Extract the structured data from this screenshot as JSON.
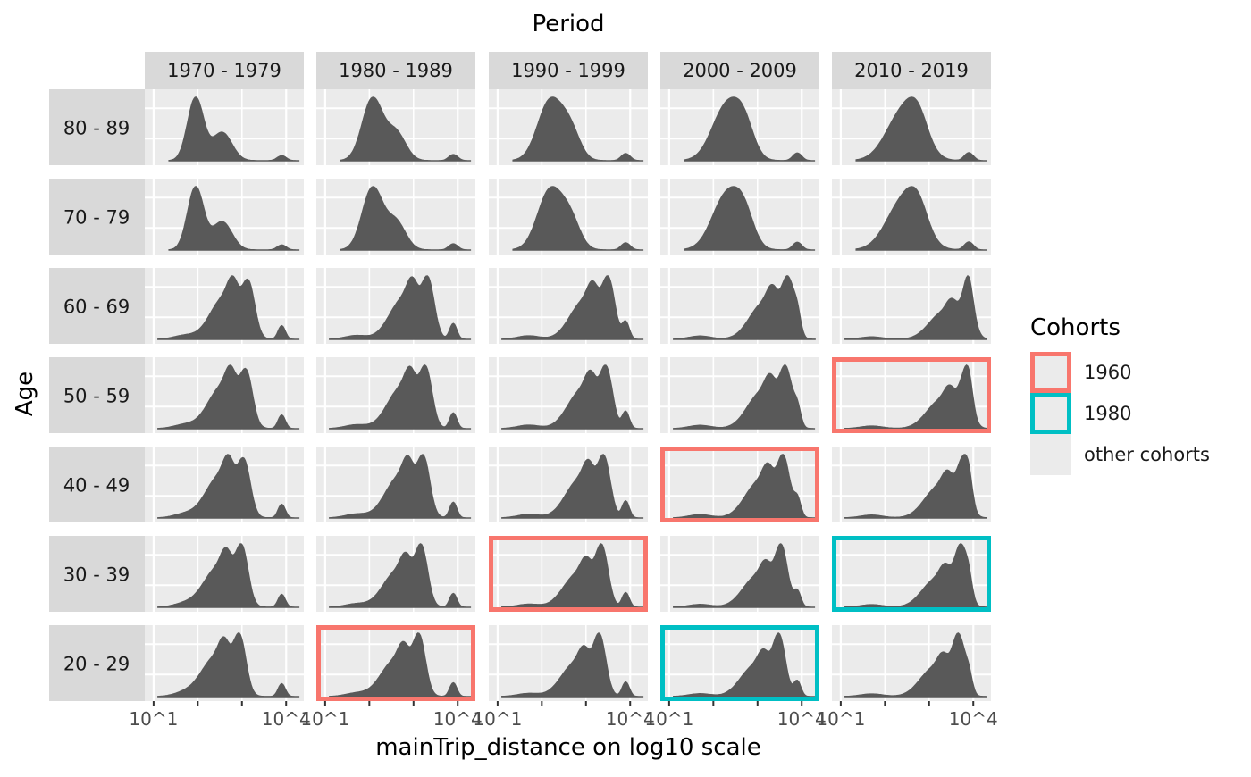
{
  "chart_data": {
    "type": "area",
    "title": "Period",
    "xlabel": "mainTrip_distance on log10 scale",
    "ylabel": "Age",
    "x_scale": "log10",
    "x_range_log10": [
      0.8,
      4.4
    ],
    "x_ticks": [
      "10^1",
      "10^4"
    ],
    "periods": [
      "1970 - 1979",
      "1980 - 1989",
      "1990 - 1999",
      "2000 - 2009",
      "2010 - 2019"
    ],
    "ages": [
      "80 - 89",
      "70 - 79",
      "60 - 69",
      "50 - 59",
      "40 - 49",
      "30 - 39",
      "20 - 29"
    ],
    "legend": {
      "title": "Cohorts",
      "position": "right",
      "items": [
        {
          "label": "1960",
          "color": "#F8766D"
        },
        {
          "label": "1980",
          "color": "#00BFC4"
        },
        {
          "label": "other cohorts",
          "color": "#EBEBEB"
        }
      ]
    },
    "highlight": {
      "1960": [
        [
          "20 - 29",
          "1980 - 1989"
        ],
        [
          "30 - 39",
          "1990 - 1999"
        ],
        [
          "40 - 49",
          "2000 - 2009"
        ],
        [
          "50 - 59",
          "2010 - 2019"
        ]
      ],
      "1980": [
        [
          "20 - 29",
          "2000 - 2009"
        ],
        [
          "30 - 39",
          "2010 - 2019"
        ]
      ]
    },
    "grid": true,
    "fill_color": "#595959"
  }
}
